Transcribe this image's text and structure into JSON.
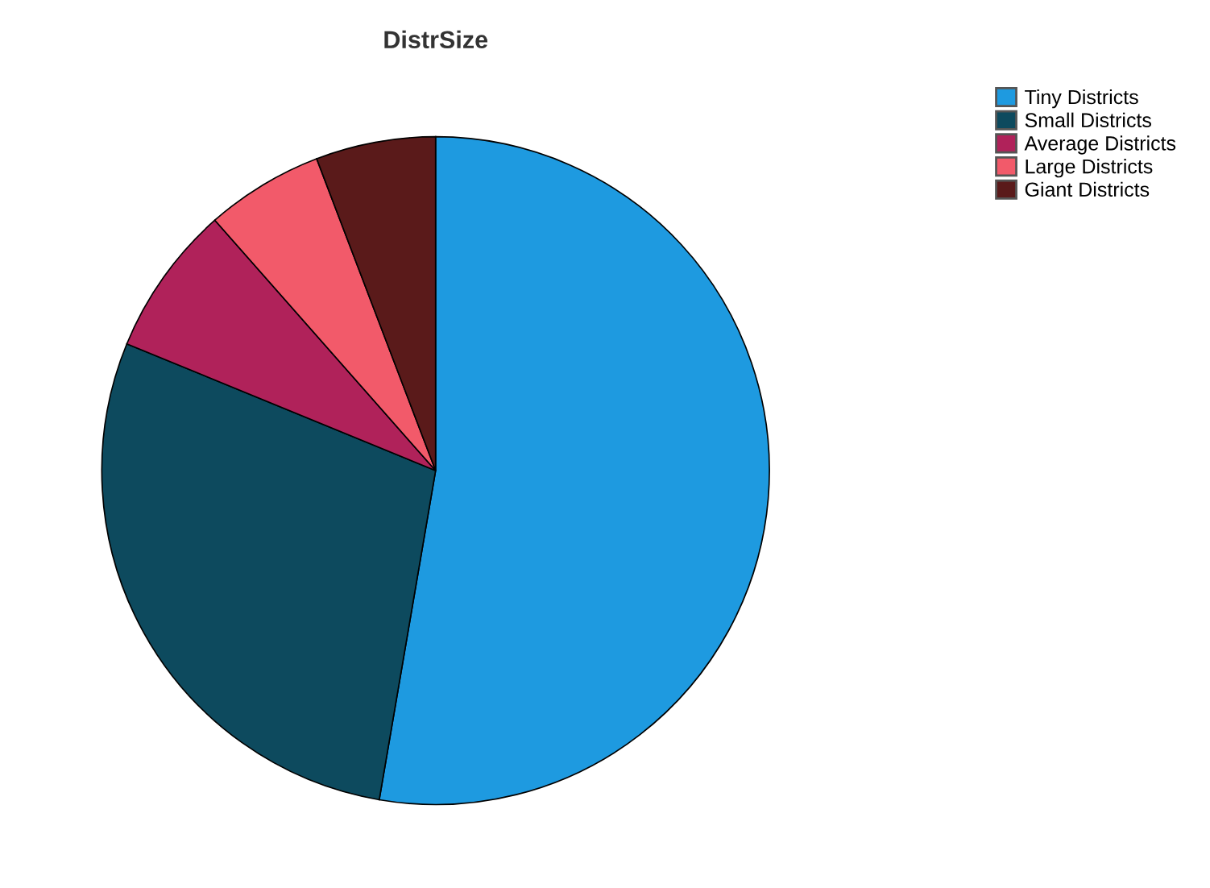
{
  "chart_data": {
    "type": "pie",
    "title": "DistrSize",
    "categories": [
      "Tiny Districts",
      "Small Districts",
      "Average Districts",
      "Large Districts",
      "Giant Districts"
    ],
    "values": [
      52.7,
      28.5,
      7.3,
      5.7,
      5.8
    ],
    "colors": [
      "#1e9ae0",
      "#0d4a5e",
      "#b0225a",
      "#f25a6a",
      "#5a1a1a"
    ],
    "legend": "top right"
  }
}
